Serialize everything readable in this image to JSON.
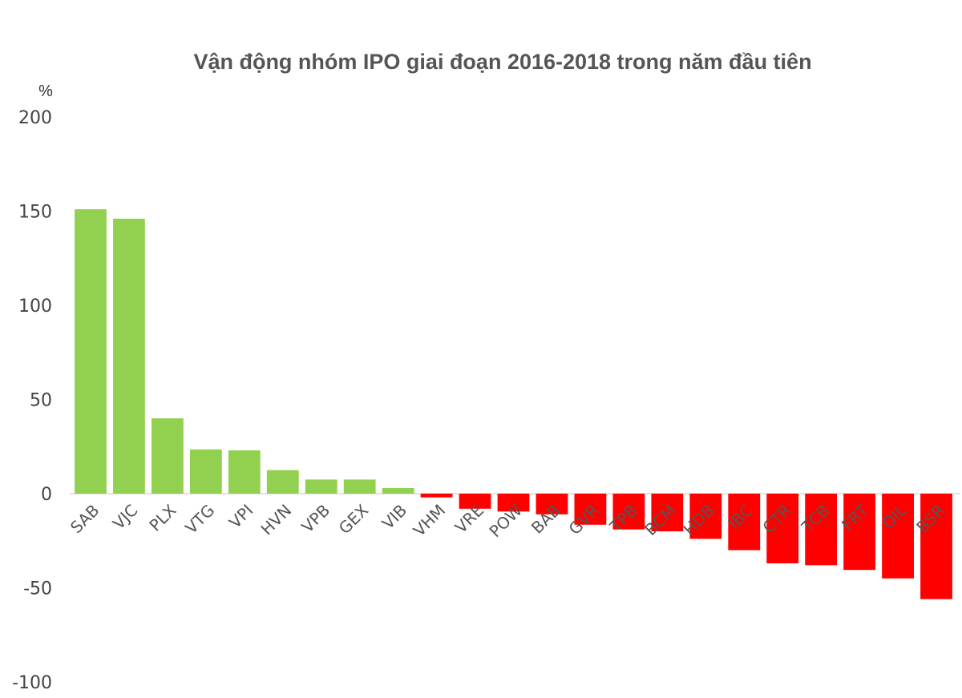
{
  "chart_data": {
    "type": "bar",
    "title": "Vận động nhóm IPO giai đoạn 2016-2018 trong năm đầu tiên",
    "ylabel": "%",
    "xlabel": "",
    "ylim": [
      -100,
      200
    ],
    "yticks": [
      200,
      150,
      100,
      50,
      0,
      -50,
      -100
    ],
    "grid": false,
    "legend": "none",
    "categories": [
      "SAB",
      "VJC",
      "PLX",
      "VTG",
      "VPI",
      "HVN",
      "VPB",
      "GEX",
      "VIB",
      "VHM",
      "VRE",
      "POW",
      "BAB",
      "GVR",
      "TPB",
      "BCM",
      "HDB",
      "IBC",
      "CTR",
      "TCB",
      "FRT",
      "OIL",
      "BSR"
    ],
    "values": [
      151,
      146,
      40,
      23.5,
      23,
      12.5,
      7.5,
      7.5,
      3,
      -2,
      -8,
      -9.5,
      -11,
      -16.5,
      -19,
      -20,
      -24,
      -30,
      -37,
      -38,
      -40.5,
      -45,
      -56
    ],
    "colors": {
      "positive": "#92d050",
      "negative": "#ff0000"
    }
  }
}
